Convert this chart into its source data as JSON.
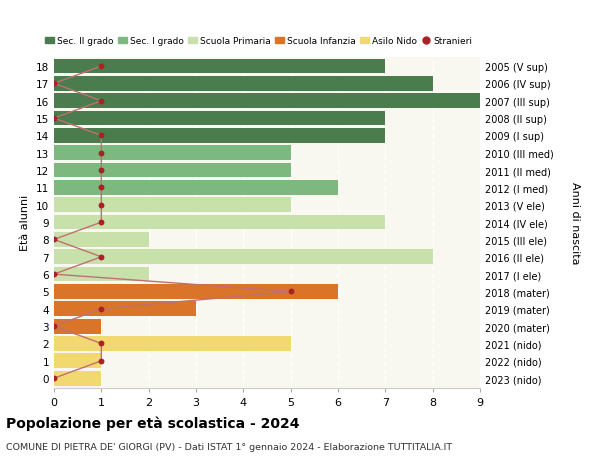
{
  "ages": [
    18,
    17,
    16,
    15,
    14,
    13,
    12,
    11,
    10,
    9,
    8,
    7,
    6,
    5,
    4,
    3,
    2,
    1,
    0
  ],
  "years": [
    "2005 (V sup)",
    "2006 (IV sup)",
    "2007 (III sup)",
    "2008 (II sup)",
    "2009 (I sup)",
    "2010 (III med)",
    "2011 (II med)",
    "2012 (I med)",
    "2013 (V ele)",
    "2014 (IV ele)",
    "2015 (III ele)",
    "2016 (II ele)",
    "2017 (I ele)",
    "2018 (mater)",
    "2019 (mater)",
    "2020 (mater)",
    "2021 (nido)",
    "2022 (nido)",
    "2023 (nido)"
  ],
  "bar_values": [
    7,
    8,
    9,
    7,
    7,
    5,
    5,
    6,
    5,
    7,
    2,
    8,
    2,
    6,
    3,
    1,
    5,
    1,
    1
  ],
  "bar_colors": [
    "#4a7c4e",
    "#4a7c4e",
    "#4a7c4e",
    "#4a7c4e",
    "#4a7c4e",
    "#7db87e",
    "#7db87e",
    "#7db87e",
    "#c8e0aa",
    "#c8e0aa",
    "#c8e0aa",
    "#c8e0aa",
    "#c8e0aa",
    "#d97428",
    "#d97428",
    "#d97428",
    "#f2d870",
    "#f2d870",
    "#f2d870"
  ],
  "stranieri_values": [
    1,
    0,
    1,
    0,
    1,
    1,
    1,
    1,
    1,
    1,
    0,
    1,
    0,
    5,
    1,
    0,
    1,
    1,
    0
  ],
  "stranieri_color": "#aa2222",
  "line_color": "#c07070",
  "title": "Popolazione per età scolastica - 2024",
  "subtitle": "COMUNE DI PIETRA DE' GIORGI (PV) - Dati ISTAT 1° gennaio 2024 - Elaborazione TUTTITALIA.IT",
  "ylabel_left": "Età alunni",
  "ylabel_right": "Anni di nascita",
  "xlim": [
    0,
    9
  ],
  "legend_labels": [
    "Sec. II grado",
    "Sec. I grado",
    "Scuola Primaria",
    "Scuola Infanzia",
    "Asilo Nido",
    "Stranieri"
  ],
  "legend_colors": [
    "#4a7c4e",
    "#7db87e",
    "#c8e0aa",
    "#d97428",
    "#f2d870",
    "#aa2222"
  ],
  "bg_color": "#ffffff",
  "plot_bg_color": "#f8f8f0",
  "bar_height": 0.85,
  "grid_color": "#ffffff",
  "grid_style": "--"
}
